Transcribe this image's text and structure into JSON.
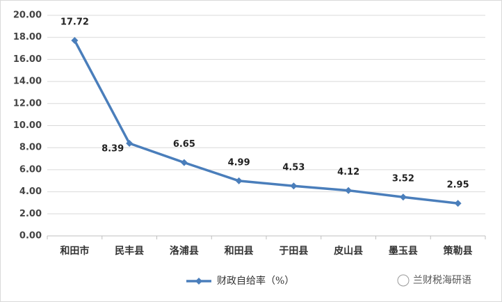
{
  "chart_data": {
    "type": "line",
    "categories": [
      "和田市",
      "民丰县",
      "洛浦县",
      "和田县",
      "于田县",
      "皮山县",
      "墨玉县",
      "策勒县"
    ],
    "series": [
      {
        "name": "财政自给率（%）",
        "color": "#4a7ebb",
        "values": [
          17.72,
          8.39,
          6.65,
          4.99,
          4.53,
          4.12,
          3.52,
          2.95
        ]
      }
    ],
    "ylim": [
      0,
      20
    ],
    "yticks": [
      {
        "value": 0,
        "label": "0.00"
      },
      {
        "value": 2,
        "label": "2.00"
      },
      {
        "value": 4,
        "label": "4.00"
      },
      {
        "value": 6,
        "label": "6.00"
      },
      {
        "value": 8,
        "label": "8.00"
      },
      {
        "value": 10,
        "label": "10.00"
      },
      {
        "value": 12,
        "label": "12.00"
      },
      {
        "value": 14,
        "label": "14.00"
      },
      {
        "value": 16,
        "label": "16.00"
      },
      {
        "value": 18,
        "label": "18.00"
      },
      {
        "value": 20,
        "label": "20.00"
      }
    ],
    "grid": true,
    "legend": "bottom"
  },
  "watermark": "兰财税海研语"
}
